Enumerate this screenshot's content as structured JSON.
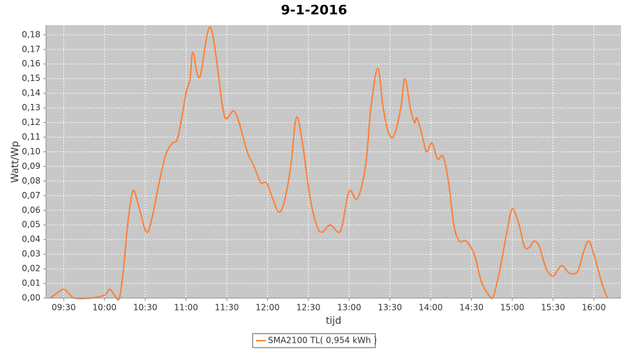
{
  "chart_data": {
    "type": "line",
    "title": "9-1-2016",
    "x_label": "tijd",
    "y_label": "Watt/Wp",
    "xlim": [
      557,
      980
    ],
    "xticks": [
      {
        "value": 570,
        "label": "09:30"
      },
      {
        "value": 600,
        "label": "10:00"
      },
      {
        "value": 630,
        "label": "10:30"
      },
      {
        "value": 660,
        "label": "11:00"
      },
      {
        "value": 690,
        "label": "11:30"
      },
      {
        "value": 720,
        "label": "12:00"
      },
      {
        "value": 750,
        "label": "12:30"
      },
      {
        "value": 780,
        "label": "13:00"
      },
      {
        "value": 810,
        "label": "13:30"
      },
      {
        "value": 840,
        "label": "14:00"
      },
      {
        "value": 870,
        "label": "14:30"
      },
      {
        "value": 900,
        "label": "15:00"
      },
      {
        "value": 930,
        "label": "15:30"
      },
      {
        "value": 960,
        "label": "16:00"
      }
    ],
    "ylim": [
      0,
      0.1866
    ],
    "yticks": [
      {
        "value": 0,
        "label": "0,00"
      },
      {
        "value": 0.01,
        "label": "0,01"
      },
      {
        "value": 0.02,
        "label": "0,02"
      },
      {
        "value": 0.03,
        "label": "0,03"
      },
      {
        "value": 0.04,
        "label": "0,04"
      },
      {
        "value": 0.05,
        "label": "0,05"
      },
      {
        "value": 0.06,
        "label": "0,06"
      },
      {
        "value": 0.07,
        "label": "0,07"
      },
      {
        "value": 0.08,
        "label": "0,08"
      },
      {
        "value": 0.09,
        "label": "0,09"
      },
      {
        "value": 0.1,
        "label": "0,10"
      },
      {
        "value": 0.11,
        "label": "0,11"
      },
      {
        "value": 0.12,
        "label": "0,12"
      },
      {
        "value": 0.13,
        "label": "0,13"
      },
      {
        "value": 0.14,
        "label": "0,14"
      },
      {
        "value": 0.15,
        "label": "0,15"
      },
      {
        "value": 0.16,
        "label": "0,16"
      },
      {
        "value": 0.17,
        "label": "0,17"
      },
      {
        "value": 0.18,
        "label": "0,18"
      }
    ],
    "grid": true,
    "legend": "bottom",
    "x": [
      560,
      566,
      570,
      574,
      578,
      590,
      600,
      604,
      608,
      611,
      614,
      617,
      620,
      622,
      626,
      631,
      635,
      640,
      645,
      650,
      654,
      660,
      663,
      665,
      670,
      678,
      687,
      690,
      695,
      699,
      705,
      710,
      715,
      719,
      723,
      728,
      732,
      737,
      741,
      745,
      751,
      756,
      760,
      766,
      772,
      775,
      780,
      786,
      792,
      796,
      801,
      805,
      809,
      813,
      818,
      821,
      825,
      828,
      830,
      834,
      837,
      841,
      845,
      849,
      853,
      857,
      861,
      866,
      872,
      877,
      882,
      886,
      891,
      896,
      900,
      905,
      909,
      913,
      916,
      920,
      925,
      930,
      934,
      937,
      942,
      948,
      952,
      956,
      960,
      966,
      970
    ],
    "series": [
      {
        "name": "SMA2100 TL( 0,954 kWh )",
        "color": "#ff7f33",
        "values": [
          0,
          0.004,
          0.006,
          0.003,
          0,
          0,
          0.002,
          0.006,
          0.001,
          0,
          0.02,
          0.05,
          0.07,
          0.073,
          0.06,
          0.045,
          0.055,
          0.078,
          0.098,
          0.106,
          0.11,
          0.14,
          0.15,
          0.168,
          0.151,
          0.185,
          0.13,
          0.123,
          0.128,
          0.12,
          0.1,
          0.09,
          0.079,
          0.079,
          0.07,
          0.059,
          0.065,
          0.09,
          0.123,
          0.11,
          0.07,
          0.05,
          0.045,
          0.05,
          0.045,
          0.05,
          0.073,
          0.068,
          0.09,
          0.13,
          0.157,
          0.13,
          0.113,
          0.111,
          0.13,
          0.15,
          0.13,
          0.12,
          0.123,
          0.11,
          0.1,
          0.106,
          0.095,
          0.097,
          0.08,
          0.05,
          0.039,
          0.039,
          0.03,
          0.012,
          0.003,
          0.001,
          0.02,
          0.045,
          0.061,
          0.05,
          0.035,
          0.035,
          0.039,
          0.035,
          0.02,
          0.015,
          0.02,
          0.022,
          0.017,
          0.018,
          0.03,
          0.039,
          0.03,
          0.01,
          0
        ]
      }
    ]
  }
}
